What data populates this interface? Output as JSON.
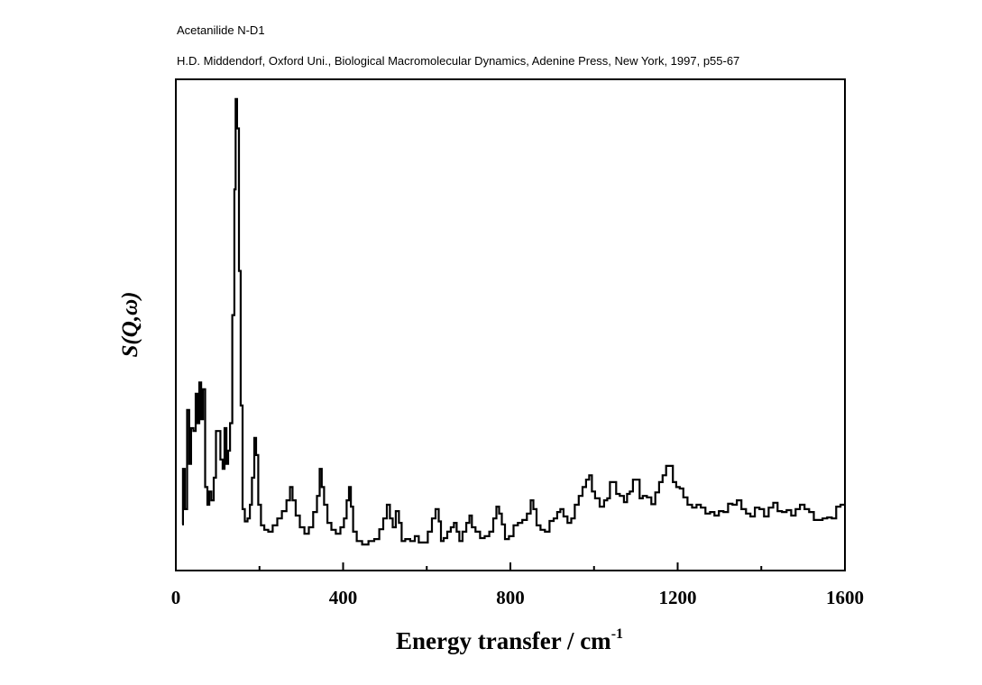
{
  "chart_data": {
    "type": "line",
    "title": "Acetanilide N-D1",
    "subtitle": "H.D. Middendorf, Oxford Uni., Biological Macromolecular Dynamics, Adenine Press, New York, 1997, p55-67",
    "xlabel": "Energy transfer / cm",
    "xlabel_superscript": "-1",
    "ylabel": "S(Q,ω)",
    "xlim": [
      0,
      1600
    ],
    "ylim": [
      0,
      100
    ],
    "xticks": [
      0,
      400,
      800,
      1200,
      1600
    ],
    "xtick_labels": [
      "0",
      "400",
      "800",
      "1200",
      "1600"
    ],
    "minor_xticks": [
      200,
      600,
      1000,
      1400
    ],
    "grid": false,
    "line_color": "#000000",
    "series": [
      {
        "name": "Acetanilide N-D1",
        "x": [
          15,
          19,
          24,
          30,
          34,
          39,
          45,
          50,
          54,
          58,
          63,
          67,
          73,
          78,
          82,
          88,
          93,
          99,
          103,
          110,
          114,
          119,
          123,
          127,
          132,
          138,
          142,
          144,
          149,
          153,
          157,
          162,
          168,
          175,
          179,
          185,
          190,
          194,
          200,
          207,
          216,
          226,
          237,
          248,
          259,
          270,
          276,
          282,
          291,
          302,
          313,
          323,
          334,
          341,
          347,
          351,
          358,
          367,
          377,
          388,
          399,
          405,
          412,
          416,
          421,
          427,
          438,
          453,
          468,
          481,
          492,
          500,
          509,
          515,
          522,
          530,
          537,
          543,
          554,
          567,
          576,
          586,
          597,
          608,
          617,
          625,
          632,
          636,
          645,
          653,
          662,
          668,
          675,
          681,
          690,
          699,
          705,
          711,
          722,
          733,
          744,
          755,
          763,
          770,
          776,
          783,
          791,
          802,
          813,
          823,
          834,
          845,
          852,
          858,
          867,
          877,
          888,
          899,
          908,
          916,
          923,
          931,
          942,
          949,
          959,
          968,
          977,
          985,
          992,
          998,
          1007,
          1020,
          1028,
          1035,
          1041,
          1050,
          1056,
          1067,
          1076,
          1082,
          1089,
          1097,
          1106,
          1112,
          1121,
          1132,
          1142,
          1151,
          1160,
          1168,
          1177,
          1185,
          1192,
          1201,
          1209,
          1218,
          1229,
          1240,
          1250,
          1261,
          1272,
          1283,
          1293,
          1304,
          1315,
          1326,
          1336,
          1347,
          1358,
          1369,
          1379,
          1390,
          1401,
          1412,
          1423,
          1434,
          1444,
          1455,
          1466,
          1477,
          1487,
          1498,
          1509,
          1520,
          1531,
          1541,
          1552,
          1563,
          1574,
          1584,
          1595
        ],
        "y": [
          9.4,
          20.7,
          12.5,
          32.7,
          21.7,
          29,
          28.4,
          36,
          30,
          38.3,
          30.8,
          36.9,
          17,
          13.4,
          16.1,
          14.3,
          18.9,
          28.4,
          28.4,
          22.6,
          20.7,
          29,
          21.7,
          24.4,
          30,
          52,
          77.6,
          96,
          90,
          61,
          33.6,
          12.5,
          10,
          10.6,
          13.4,
          18.9,
          27,
          23.5,
          13.4,
          9.2,
          8.3,
          7.9,
          9.2,
          10.6,
          12.1,
          14.3,
          17,
          14.3,
          11.2,
          8.8,
          7.5,
          8.8,
          11.9,
          15.2,
          20.7,
          17,
          13.4,
          9.7,
          8.3,
          7.5,
          8.8,
          10.6,
          14.3,
          17,
          13,
          7.9,
          6,
          5.3,
          6,
          6.4,
          8.4,
          10.6,
          13.4,
          10.6,
          8.8,
          12.1,
          9.7,
          6,
          6.4,
          6,
          7,
          5.7,
          5.7,
          7.9,
          10.6,
          12.5,
          10,
          6,
          6.6,
          7.9,
          8.8,
          9.7,
          7.9,
          6,
          7.9,
          9.7,
          11.2,
          8.8,
          7.9,
          6.6,
          7,
          7.9,
          10.6,
          13,
          11.6,
          9.4,
          6.4,
          7,
          9.2,
          9.7,
          10.3,
          11.6,
          14.3,
          12.5,
          9.2,
          8.3,
          7.9,
          10.1,
          10.6,
          11.9,
          12.5,
          11,
          9.7,
          10.6,
          13.4,
          15.2,
          17,
          18.5,
          19.4,
          16.1,
          14.7,
          13,
          14.3,
          14.7,
          18,
          18,
          15.6,
          15.2,
          13.9,
          15.6,
          16.1,
          18.5,
          18.5,
          14.7,
          15.2,
          14.9,
          13.5,
          15.9,
          18,
          19.4,
          21.3,
          21.3,
          18,
          17,
          16.7,
          14.9,
          13.4,
          12.8,
          13.4,
          12.8,
          11.6,
          11.9,
          11.2,
          12.1,
          11.9,
          13.6,
          13.4,
          14.3,
          12.5,
          11.6,
          11,
          12.8,
          12.5,
          11,
          12.8,
          13.8,
          12.1,
          11.9,
          12.3,
          11.2,
          12.5,
          13.4,
          12.5,
          11.9,
          10.3,
          10.3,
          10.6,
          10.8,
          10.6,
          13,
          13.4
        ]
      }
    ]
  }
}
